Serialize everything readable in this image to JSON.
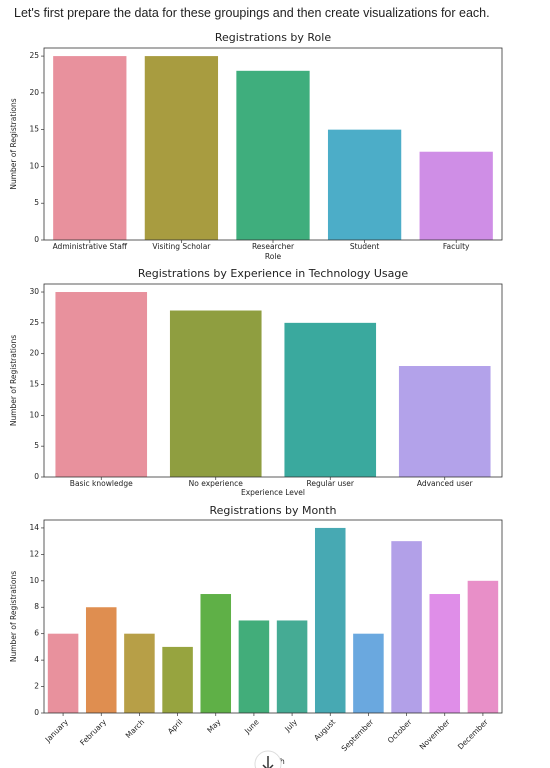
{
  "intro": "Let's first prepare the data for these groupings and then create visualizations for each.",
  "chart_data": [
    {
      "type": "bar",
      "title": "Registrations by Role",
      "xlabel": "Role",
      "ylabel": "Number of Registrations",
      "categories": [
        "Administrative Staff",
        "Visiting Scholar",
        "Researcher",
        "Student",
        "Faculty"
      ],
      "values": [
        25,
        25,
        23,
        15,
        12
      ],
      "colors": [
        "#e8919d",
        "#a89c40",
        "#3fae7d",
        "#4cadc8",
        "#cf8ee6"
      ],
      "ylim": [
        0,
        26.1
      ],
      "yticks": [
        0,
        5,
        10,
        15,
        20,
        25
      ]
    },
    {
      "type": "bar",
      "title": "Registrations by Experience in Technology Usage",
      "xlabel": "Experience Level",
      "ylabel": "Number of Registrations",
      "categories": [
        "Basic knowledge",
        "No experience",
        "Regular user",
        "Advanced user"
      ],
      "values": [
        30,
        27,
        25,
        18
      ],
      "colors": [
        "#e8919d",
        "#8f9e40",
        "#3aa99e",
        "#b3a2ea"
      ],
      "ylim": [
        0,
        31.3
      ],
      "yticks": [
        0,
        5,
        10,
        15,
        20,
        25,
        30
      ]
    },
    {
      "type": "bar",
      "title": "Registrations by Month",
      "xlabel": "Month",
      "ylabel": "Number of Registrations",
      "categories": [
        "January",
        "February",
        "March",
        "April",
        "May",
        "June",
        "July",
        "August",
        "September",
        "October",
        "November",
        "December"
      ],
      "values": [
        6,
        8,
        6,
        5,
        9,
        7,
        7,
        14,
        6,
        13,
        9,
        10
      ],
      "colors": [
        "#e8919d",
        "#df8e50",
        "#b79f47",
        "#97a43f",
        "#5fb047",
        "#42ad7a",
        "#45ab94",
        "#47a9b3",
        "#6aa8df",
        "#b2a0e8",
        "#df8ee8",
        "#e88fc8"
      ],
      "ylim": [
        0,
        14.6
      ],
      "yticks": [
        0,
        2,
        4,
        6,
        8,
        10,
        12,
        14
      ]
    }
  ]
}
